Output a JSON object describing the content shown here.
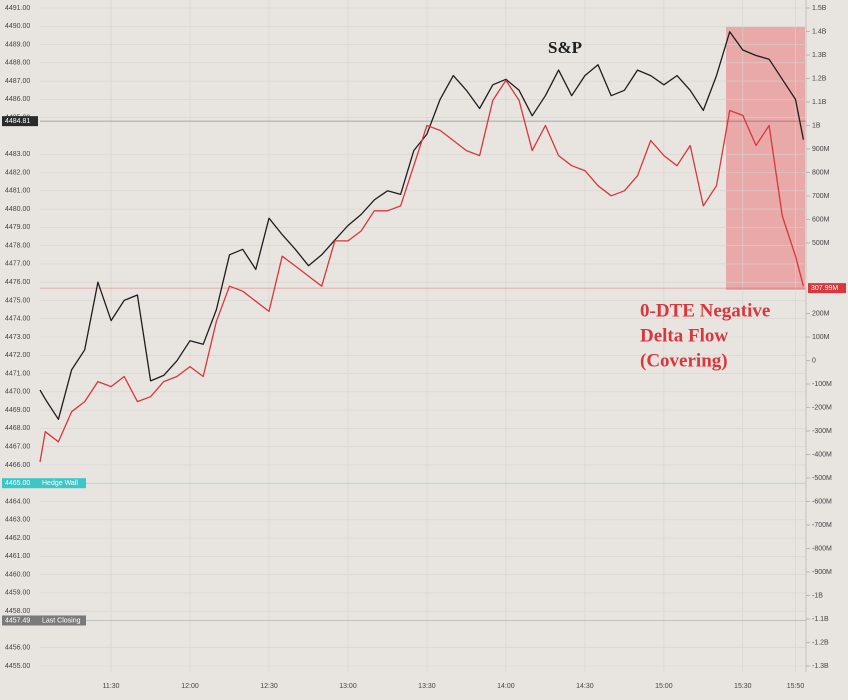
{
  "chart_data": {
    "type": "line",
    "annotation": "S&P",
    "note_lines": [
      "0-DTE Negative",
      "Delta Flow",
      "(Covering)"
    ],
    "x": [
      "11:03",
      "11:05",
      "11:10",
      "11:15",
      "11:20",
      "11:25",
      "11:30",
      "11:35",
      "11:40",
      "11:45",
      "11:50",
      "11:55",
      "12:00",
      "12:05",
      "12:10",
      "12:15",
      "12:20",
      "12:25",
      "12:30",
      "12:35",
      "12:40",
      "12:45",
      "12:50",
      "12:55",
      "13:00",
      "13:05",
      "13:10",
      "13:15",
      "13:20",
      "13:25",
      "13:30",
      "13:35",
      "13:40",
      "13:45",
      "13:50",
      "13:55",
      "14:00",
      "14:05",
      "14:10",
      "14:15",
      "14:20",
      "14:25",
      "14:30",
      "14:35",
      "14:40",
      "14:45",
      "14:50",
      "14:55",
      "15:00",
      "15:05",
      "15:10",
      "15:15",
      "15:20",
      "15:25",
      "15:30",
      "15:35",
      "15:40",
      "15:45",
      "15:50",
      "15:53"
    ],
    "xlim": [
      "11:03",
      "15:54"
    ],
    "xticks": [
      "11:30",
      "12:00",
      "12:30",
      "13:00",
      "13:30",
      "14:00",
      "14:30",
      "15:00",
      "15:30",
      "15:50"
    ],
    "series": [
      {
        "name": "S&P",
        "color": "#1e1e1e",
        "axis": "y",
        "values": [
          4470.1,
          4469.6,
          4468.5,
          4471.2,
          4472.3,
          4476.0,
          4473.9,
          4475.0,
          4475.3,
          4470.6,
          4470.9,
          4471.7,
          4472.8,
          4472.6,
          4474.5,
          4477.5,
          4477.8,
          4476.7,
          4479.5,
          4478.6,
          4477.8,
          4476.9,
          4477.5,
          4478.3,
          4479.1,
          4479.7,
          4480.5,
          4481.0,
          4480.8,
          4483.2,
          4484.1,
          4486.0,
          4487.3,
          4486.5,
          4485.5,
          4486.8,
          4487.1,
          4486.5,
          4485.1,
          4486.2,
          4487.6,
          4486.2,
          4487.3,
          4487.9,
          4486.2,
          4486.5,
          4487.6,
          4487.3,
          4486.8,
          4487.3,
          4486.5,
          4485.4,
          4487.3,
          4489.7,
          4488.7,
          4488.4,
          4488.2,
          4487.1,
          4486.0,
          4483.8
        ]
      },
      {
        "name": "0-DTE Delta Flow",
        "color": "#d9363e",
        "axis": "y2",
        "values": [
          -432,
          -303,
          -346,
          -218,
          -175,
          -90,
          -111,
          -68,
          -175,
          -154,
          -90,
          -68,
          -26,
          -68,
          167,
          316,
          295,
          252,
          209,
          444,
          402,
          359,
          316,
          509,
          509,
          551,
          637,
          637,
          658,
          829,
          1000,
          979,
          936,
          893,
          872,
          1107,
          1192,
          1107,
          893,
          1000,
          872,
          829,
          808,
          744,
          701,
          722,
          786,
          936,
          872,
          829,
          915,
          658,
          744,
          1064,
          1043,
          915,
          1000,
          615,
          444,
          316
        ]
      }
    ],
    "ylim": [
      4455,
      4491
    ],
    "yticks": [
      {
        "value": 4491,
        "label": "4491.00"
      },
      {
        "value": 4490,
        "label": "4490.00"
      },
      {
        "value": 4489,
        "label": "4489.00"
      },
      {
        "value": 4488,
        "label": "4488.00"
      },
      {
        "value": 4487,
        "label": "4487.00"
      },
      {
        "value": 4486,
        "label": "4486.00"
      },
      {
        "value": 4485,
        "label": "4485.00"
      },
      {
        "value": 4483,
        "label": "4483.00"
      },
      {
        "value": 4482,
        "label": "4482.00"
      },
      {
        "value": 4481,
        "label": "4481.00"
      },
      {
        "value": 4480,
        "label": "4480.00"
      },
      {
        "value": 4479,
        "label": "4479.00"
      },
      {
        "value": 4478,
        "label": "4478.00"
      },
      {
        "value": 4477,
        "label": "4477.00"
      },
      {
        "value": 4476,
        "label": "4476.00"
      },
      {
        "value": 4475,
        "label": "4475.00"
      },
      {
        "value": 4474,
        "label": "4474.00"
      },
      {
        "value": 4473,
        "label": "4473.00"
      },
      {
        "value": 4472,
        "label": "4472.00"
      },
      {
        "value": 4471,
        "label": "4471.00"
      },
      {
        "value": 4470,
        "label": "4470.00"
      },
      {
        "value": 4469,
        "label": "4469.00"
      },
      {
        "value": 4468,
        "label": "4468.00"
      },
      {
        "value": 4467,
        "label": "4467.00"
      },
      {
        "value": 4466,
        "label": "4466.00"
      },
      {
        "value": 4464,
        "label": "4464.00"
      },
      {
        "value": 4463,
        "label": "4463.00"
      },
      {
        "value": 4462,
        "label": "4462.00"
      },
      {
        "value": 4461,
        "label": "4461.00"
      },
      {
        "value": 4460,
        "label": "4460.00"
      },
      {
        "value": 4459,
        "label": "4459.00"
      },
      {
        "value": 4458,
        "label": "4458.00"
      },
      {
        "value": 4456,
        "label": "4456.00"
      },
      {
        "value": 4455,
        "label": "4455.00"
      }
    ],
    "y2lim": [
      -1300,
      1500
    ],
    "y2ticks": [
      {
        "value": 1500,
        "label": "1.5B"
      },
      {
        "value": 1400,
        "label": "1.4B"
      },
      {
        "value": 1300,
        "label": "1.3B"
      },
      {
        "value": 1200,
        "label": "1.2B"
      },
      {
        "value": 1100,
        "label": "1.1B"
      },
      {
        "value": 1000,
        "label": "1B"
      },
      {
        "value": 900,
        "label": "900M"
      },
      {
        "value": 800,
        "label": "800M"
      },
      {
        "value": 700,
        "label": "700M"
      },
      {
        "value": 600,
        "label": "600M"
      },
      {
        "value": 500,
        "label": "500M"
      },
      {
        "value": 200,
        "label": "200M"
      },
      {
        "value": 100,
        "label": "100M"
      },
      0,
      {
        "value": -100,
        "label": "-100M"
      },
      {
        "value": -200,
        "label": "-200M"
      },
      {
        "value": -300,
        "label": "-300M"
      },
      {
        "value": -400,
        "label": "-400M"
      },
      {
        "value": -500,
        "label": "-500M"
      },
      {
        "value": -600,
        "label": "-600M"
      },
      {
        "value": -700,
        "label": "-700M"
      },
      {
        "value": -800,
        "label": "-800M"
      },
      {
        "value": -900,
        "label": "-900M"
      },
      {
        "value": -1000,
        "label": "-1B"
      },
      {
        "value": -1100,
        "label": "-1.1B"
      },
      {
        "value": -1200,
        "label": "-1.2B"
      },
      {
        "value": -1300,
        "label": "-1.3B"
      }
    ],
    "markers": [
      {
        "value": 4484.81,
        "label": "4484.81",
        "axis": "y",
        "color": "#2b2b2b"
      },
      {
        "value": 4465,
        "label": "4465.00",
        "tag": "Hedge Wall",
        "axis": "y",
        "color": "#3cc6c6"
      },
      {
        "value": 4457.49,
        "label": "4457.49",
        "tag": "Last Closing",
        "axis": "y",
        "color": "#7a7a7a"
      },
      {
        "value": 307.99,
        "label": "307.99M",
        "axis": "y2",
        "color": "#d9363e"
      }
    ],
    "grid": true
  }
}
